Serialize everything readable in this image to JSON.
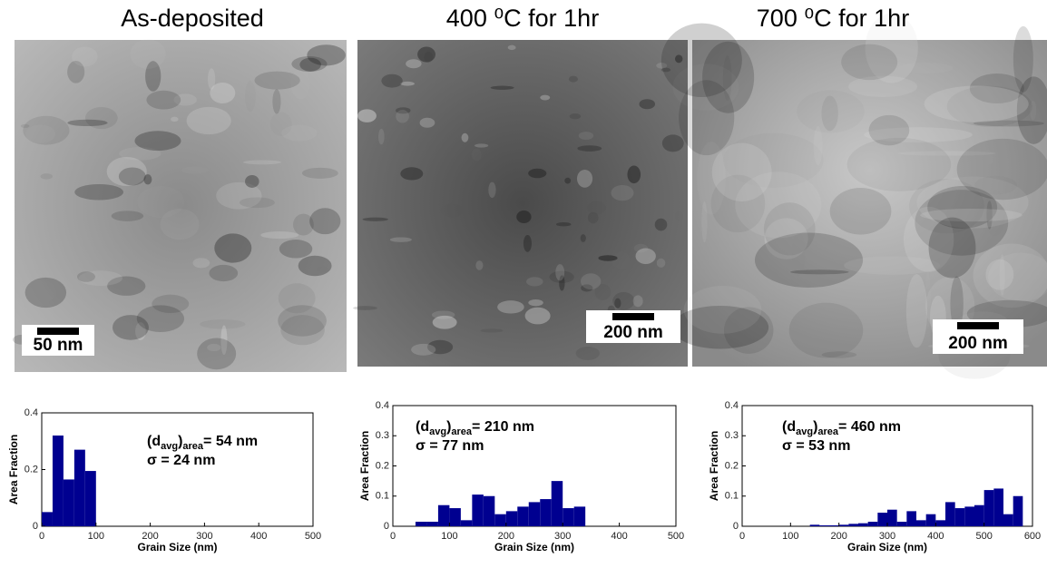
{
  "panels": [
    {
      "title": "As-deposited",
      "scale_bar": "50 nm"
    },
    {
      "title": "400 ⁰C for 1hr",
      "scale_bar": "200 nm"
    },
    {
      "title": "700 ⁰C for 1hr",
      "scale_bar": "200 nm"
    }
  ],
  "chart_data": [
    {
      "type": "histogram",
      "x_label": "Grain Size (nm)",
      "y_label": "Area Fraction",
      "color": "#000090",
      "bins": [
        0,
        20,
        40,
        60,
        80,
        100
      ],
      "values": [
        0.05,
        0.32,
        0.165,
        0.27,
        0.195
      ],
      "xlim": [
        0,
        500
      ],
      "ylim": [
        0,
        0.4
      ],
      "xticks": [
        0,
        100,
        200,
        300,
        400,
        500
      ],
      "yticks": [
        0,
        0.2,
        0.4
      ],
      "annotation": [
        [
          {
            "text": "(d"
          },
          {
            "text": "avg",
            "sub": true
          },
          {
            "text": ")"
          },
          {
            "text": "area",
            "sub": true
          },
          {
            "text": "= 54 nm"
          }
        ],
        [
          {
            "text": "σ = 24 nm"
          }
        ]
      ]
    },
    {
      "type": "histogram",
      "x_label": "Grain Size (nm)",
      "y_label": "Area Fraction",
      "color": "#000090",
      "bins": [
        40,
        60,
        80,
        100,
        120,
        140,
        160,
        180,
        200,
        220,
        240,
        260,
        280,
        300,
        320,
        340
      ],
      "values": [
        0.015,
        0.015,
        0.07,
        0.06,
        0.02,
        0.105,
        0.1,
        0.04,
        0.05,
        0.065,
        0.08,
        0.09,
        0.15,
        0.06,
        0.065
      ],
      "xlim": [
        0,
        500
      ],
      "ylim": [
        0,
        0.4
      ],
      "xticks": [
        0,
        100,
        200,
        300,
        400,
        500
      ],
      "yticks": [
        0,
        0.1,
        0.2,
        0.3,
        0.4
      ],
      "annotation": [
        [
          {
            "text": "(d"
          },
          {
            "text": "avg",
            "sub": true
          },
          {
            "text": ")"
          },
          {
            "text": "area",
            "sub": true
          },
          {
            "text": "= 210 nm"
          }
        ],
        [
          {
            "text": "σ = 77 nm"
          }
        ]
      ]
    },
    {
      "type": "histogram",
      "x_label": "Grain Size (nm)",
      "y_label": "Area Fraction",
      "color": "#000090",
      "bins": [
        140,
        160,
        180,
        200,
        220,
        240,
        260,
        280,
        300,
        320,
        340,
        360,
        380,
        400,
        420,
        440,
        460,
        480,
        500,
        520,
        540,
        560,
        580
      ],
      "values": [
        0.005,
        0.003,
        0.003,
        0.005,
        0.008,
        0.01,
        0.015,
        0.045,
        0.055,
        0.015,
        0.05,
        0.02,
        0.04,
        0.02,
        0.08,
        0.06,
        0.065,
        0.07,
        0.12,
        0.125,
        0.04,
        0.1
      ],
      "xlim": [
        0,
        600
      ],
      "ylim": [
        0,
        0.4
      ],
      "xticks": [
        0,
        100,
        200,
        300,
        400,
        500,
        600
      ],
      "yticks": [
        0,
        0.1,
        0.2,
        0.3,
        0.4
      ],
      "annotation": [
        [
          {
            "text": "(d"
          },
          {
            "text": "avg",
            "sub": true
          },
          {
            "text": ")"
          },
          {
            "text": "area",
            "sub": true
          },
          {
            "text": "= 460 nm"
          }
        ],
        [
          {
            "text": "σ = 53 nm"
          }
        ]
      ]
    }
  ]
}
